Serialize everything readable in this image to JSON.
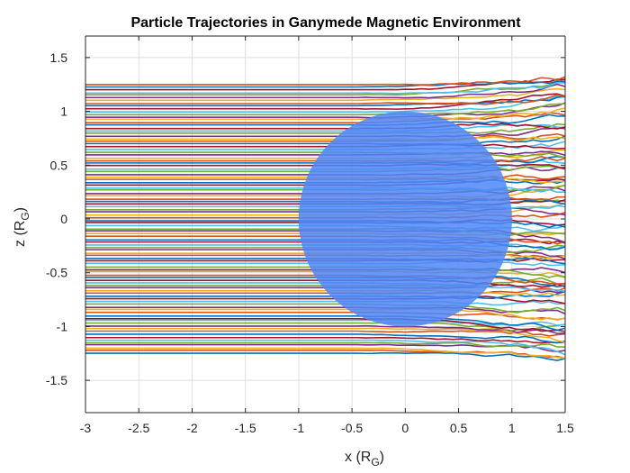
{
  "chart_data": {
    "type": "line",
    "title": "Particle Trajectories in Ganymede Magnetic Environment",
    "xlabel": {
      "main": "x (R",
      "sub": "G",
      "close": ")"
    },
    "ylabel": {
      "main": "z (R",
      "sub": "G",
      "close": ")"
    },
    "xlim": [
      -3,
      1.5
    ],
    "ylim": [
      -1.8,
      1.7
    ],
    "xticks": [
      -3,
      -2.5,
      -2,
      -1.5,
      -1,
      -0.5,
      0,
      0.5,
      1,
      1.5
    ],
    "xtick_labels": [
      "-3",
      "-2.5",
      "-2",
      "-1.5",
      "-1",
      "-0.5",
      "0",
      "0.5",
      "1",
      "1.5"
    ],
    "yticks": [
      -1.5,
      -1,
      -0.5,
      0,
      0.5,
      1,
      1.5
    ],
    "ytick_labels": [
      "-1.5",
      "-1",
      "-0.5",
      "0",
      "0.5",
      "1",
      "1.5"
    ],
    "grid": true,
    "box": true,
    "moon": {
      "center_x": 0,
      "center_z": 0,
      "radius": 1,
      "color": "#4f86f7",
      "opacity": 0.85
    },
    "trajectories": {
      "count": 100,
      "x_start": -3,
      "x_end": 1.5,
      "z_start_min": -1.25,
      "z_start_max": 1.25,
      "color_order": [
        "#0072BD",
        "#D95319",
        "#EDB120",
        "#7E2F8E",
        "#77AC30",
        "#4DBEEE",
        "#A2142F"
      ]
    }
  }
}
